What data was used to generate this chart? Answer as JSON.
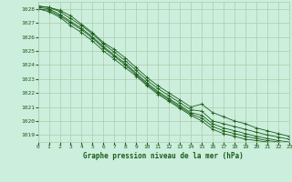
{
  "title": "Graphe pression niveau de la mer (hPa)",
  "bg_color": "#cceedd",
  "grid_color": "#aaccaa",
  "line_color": "#1a5c1a",
  "xlim": [
    0,
    23
  ],
  "ylim": [
    1018.5,
    1028.5
  ],
  "xticks": [
    0,
    1,
    2,
    3,
    4,
    5,
    6,
    7,
    8,
    9,
    10,
    11,
    12,
    13,
    14,
    15,
    16,
    17,
    18,
    19,
    20,
    21,
    22,
    23
  ],
  "yticks": [
    1019,
    1020,
    1021,
    1022,
    1023,
    1024,
    1025,
    1026,
    1027,
    1028
  ],
  "series": [
    [
      1028.2,
      1028.1,
      1027.9,
      1027.5,
      1026.9,
      1026.3,
      1025.6,
      1025.1,
      1024.5,
      1023.8,
      1023.1,
      1022.5,
      1022.0,
      1021.5,
      1021.0,
      1021.2,
      1020.6,
      1020.3,
      1020.0,
      1019.8,
      1019.5,
      1019.3,
      1019.1,
      1018.9
    ],
    [
      1028.2,
      1028.1,
      1027.8,
      1027.3,
      1026.8,
      1026.2,
      1025.5,
      1024.9,
      1024.3,
      1023.6,
      1022.9,
      1022.3,
      1021.8,
      1021.3,
      1020.8,
      1020.7,
      1020.0,
      1019.8,
      1019.6,
      1019.4,
      1019.2,
      1019.0,
      1018.85,
      1018.7
    ],
    [
      1028.1,
      1028.0,
      1027.6,
      1027.1,
      1026.6,
      1026.0,
      1025.3,
      1024.7,
      1024.1,
      1023.4,
      1022.7,
      1022.1,
      1021.6,
      1021.1,
      1020.6,
      1020.4,
      1019.8,
      1019.5,
      1019.3,
      1019.1,
      1018.9,
      1018.75,
      1018.6,
      1018.5
    ],
    [
      1028.0,
      1027.9,
      1027.5,
      1027.0,
      1026.5,
      1025.9,
      1025.2,
      1024.6,
      1024.0,
      1023.3,
      1022.6,
      1022.0,
      1021.5,
      1021.0,
      1020.5,
      1020.2,
      1019.6,
      1019.3,
      1019.1,
      1018.9,
      1018.75,
      1018.6,
      1018.5,
      1018.4
    ],
    [
      1028.0,
      1027.8,
      1027.4,
      1026.8,
      1026.3,
      1025.7,
      1025.0,
      1024.4,
      1023.8,
      1023.2,
      1022.5,
      1021.9,
      1021.4,
      1020.9,
      1020.4,
      1020.0,
      1019.4,
      1019.1,
      1018.9,
      1018.7,
      1018.6,
      1018.5,
      1018.4,
      1018.35
    ]
  ],
  "xlabel_fontsize": 5.5,
  "tick_fontsize": 4.5
}
